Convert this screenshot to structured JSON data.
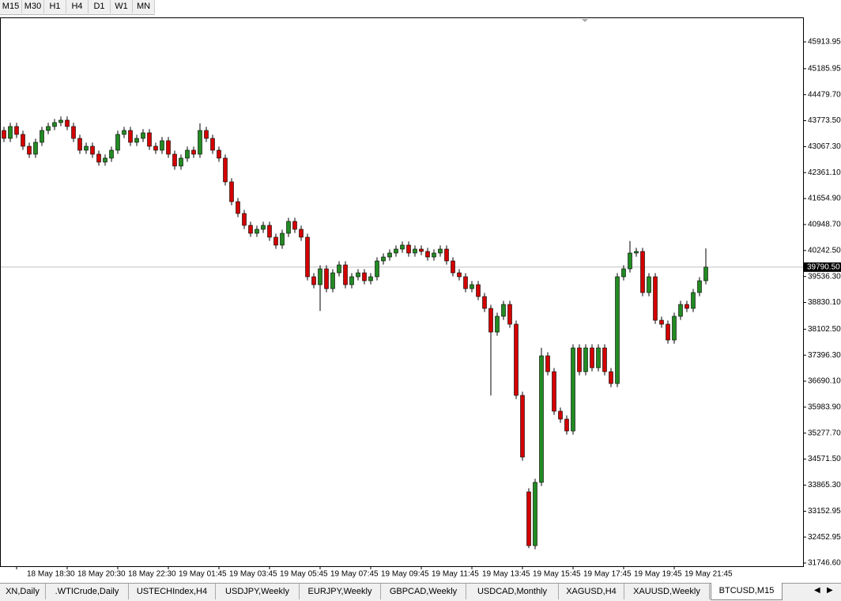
{
  "toolbar": {
    "timeframes": [
      "M15",
      "M30",
      "H1",
      "H4",
      "D1",
      "W1",
      "MN"
    ]
  },
  "chart_data": {
    "type": "candlestick",
    "categories": [
      null,
      null,
      "18 May 18:30",
      null,
      null,
      null,
      null,
      null,
      null,
      null,
      "18 May 20:30",
      null,
      null,
      null,
      null,
      null,
      null,
      null,
      "18 May 22:30",
      null,
      null,
      null,
      null,
      null,
      null,
      null,
      "19 May 01:45",
      null,
      null,
      null,
      null,
      null,
      null,
      null,
      "19 May 03:45",
      null,
      null,
      null,
      null,
      null,
      null,
      null,
      "19 May 05:45",
      null,
      null,
      null,
      null,
      null,
      null,
      null,
      "19 May 07:45",
      null,
      null,
      null,
      null,
      null,
      null,
      null,
      "19 May 09:45",
      null,
      null,
      null,
      null,
      null,
      null,
      null,
      "19 May 11:45",
      null,
      null,
      null,
      null,
      null,
      null,
      null,
      "19 May 13:45",
      null,
      null,
      null,
      null,
      null,
      null,
      null,
      "19 May 15:45",
      null,
      null,
      null,
      null,
      null,
      null,
      null,
      "19 May 17:45",
      null,
      null,
      null,
      null,
      null,
      null,
      null,
      "19 May 19:45",
      null,
      null,
      null,
      null,
      null,
      null,
      null,
      "19 May 21:45",
      null,
      null,
      null,
      null,
      null
    ],
    "open": [
      43506,
      43291,
      43614,
      43399,
      43076,
      42861,
      43184,
      43506,
      43614,
      43721,
      43786,
      43614,
      43291,
      42969,
      43076,
      42861,
      42646,
      42754,
      42969,
      43399,
      43506,
      43184,
      43291,
      43442,
      43076,
      42969,
      43227,
      42861,
      42539,
      42754,
      42969,
      42861,
      43506,
      43291,
      42969,
      42754,
      42109,
      41571,
      41249,
      40926,
      40711,
      40819,
      40926,
      40604,
      40389,
      40711,
      41034,
      40819,
      40604,
      39529,
      39314,
      39744,
      39206,
      39636,
      39851,
      39314,
      39529,
      39636,
      39421,
      39529,
      39959,
      40066,
      40174,
      40281,
      40389,
      40174,
      40281,
      40217,
      40066,
      40174,
      40281,
      39959,
      39636,
      39529,
      39206,
      39314,
      38991,
      38669,
      38024,
      38454,
      38776,
      38239,
      36304,
      33681,
      32219,
      33939,
      37379,
      36949,
      35874,
      35659,
      35336,
      37594,
      36949,
      37594,
      37056,
      37594,
      36949,
      36626,
      39529,
      39744,
      40174,
      40217,
      39099,
      39529,
      38346,
      38239,
      37809,
      38454,
      38776,
      38669,
      39099,
      39421
    ],
    "high": [
      43606,
      43714,
      43714,
      43499,
      43176,
      43284,
      43606,
      43714,
      43821,
      43886,
      43886,
      43714,
      43391,
      43176,
      43176,
      42961,
      42854,
      43069,
      43499,
      43606,
      43606,
      43391,
      43542,
      43542,
      43176,
      43327,
      43327,
      42961,
      42854,
      43069,
      43069,
      43700,
      43606,
      43391,
      43069,
      42854,
      42209,
      41671,
      41349,
      41026,
      40919,
      41026,
      41026,
      40704,
      40811,
      41134,
      41134,
      40919,
      40704,
      39629,
      39844,
      39844,
      39736,
      39951,
      39951,
      39629,
      39736,
      39736,
      39629,
      40059,
      40166,
      40274,
      40381,
      40489,
      40489,
      40381,
      40381,
      40317,
      40274,
      40381,
      40381,
      40059,
      39736,
      39629,
      39414,
      39414,
      39091,
      38769,
      38554,
      38876,
      38876,
      38339,
      36404,
      33781,
      34039,
      37600,
      37479,
      37049,
      35974,
      35759,
      37694,
      37694,
      37694,
      37694,
      37694,
      37694,
      37049,
      39629,
      39844,
      40500,
      40317,
      40317,
      39629,
      39629,
      38446,
      38339,
      38554,
      38876,
      38876,
      39199,
      39521,
      40300
    ],
    "low": [
      43191,
      43191,
      43299,
      42976,
      42761,
      42761,
      43084,
      43406,
      43514,
      43621,
      43514,
      43191,
      42869,
      42869,
      42761,
      42546,
      42546,
      42654,
      42869,
      43299,
      43084,
      43084,
      43191,
      42976,
      42869,
      42869,
      42761,
      42439,
      42439,
      42654,
      42761,
      42761,
      43191,
      42869,
      42654,
      42009,
      41471,
      41149,
      40826,
      40611,
      40611,
      40719,
      40504,
      40289,
      40289,
      40611,
      40719,
      40504,
      39429,
      39214,
      38600,
      39106,
      39106,
      39536,
      39214,
      39214,
      39429,
      39321,
      39321,
      39429,
      39859,
      39966,
      40074,
      40181,
      40074,
      40074,
      40117,
      39966,
      39966,
      40074,
      39859,
      39536,
      39429,
      39106,
      39106,
      38891,
      38569,
      36300,
      37924,
      38354,
      38139,
      36204,
      34527,
      32150,
      32119,
      33839,
      36849,
      35774,
      35559,
      35236,
      35236,
      36849,
      36849,
      36956,
      36956,
      36849,
      36526,
      36526,
      39429,
      39644,
      40074,
      38999,
      38999,
      38246,
      38139,
      37709,
      37709,
      38354,
      38569,
      38569,
      38999,
      39321
    ],
    "close": [
      43291,
      43614,
      43399,
      43076,
      42861,
      43184,
      43506,
      43614,
      43721,
      43786,
      43614,
      43291,
      42969,
      43076,
      42861,
      42646,
      42754,
      42969,
      43399,
      43506,
      43184,
      43291,
      43442,
      43076,
      42969,
      43227,
      42861,
      42539,
      42754,
      42969,
      42861,
      43506,
      43291,
      42969,
      42754,
      42109,
      41571,
      41249,
      40926,
      40711,
      40819,
      40926,
      40604,
      40389,
      40711,
      41034,
      40819,
      40604,
      39529,
      39314,
      39744,
      39206,
      39636,
      39851,
      39314,
      39529,
      39636,
      39421,
      39529,
      39959,
      40066,
      40174,
      40281,
      40389,
      40174,
      40281,
      40217,
      40066,
      40174,
      40281,
      39959,
      39636,
      39529,
      39206,
      39314,
      38991,
      38669,
      38024,
      38454,
      38776,
      38239,
      36304,
      34627,
      32219,
      33939,
      37379,
      36949,
      35874,
      35659,
      35336,
      37594,
      36949,
      37594,
      37056,
      37594,
      36949,
      36626,
      39529,
      39744,
      40174,
      40217,
      39099,
      39529,
      38346,
      38239,
      37809,
      38454,
      38776,
      38669,
      39099,
      39421,
      39790.5
    ],
    "up_color": "#228b22",
    "down_color": "#d40000",
    "current_price": {
      "value": 39790.5,
      "label": "39790.50"
    },
    "ylim": [
      31660,
      46580
    ],
    "yticks": [
      45913.95,
      45185.95,
      {
        "value": 44479.7,
        "label": "44479.70"
      },
      {
        "value": 43773.5,
        "label": "43773.50"
      },
      {
        "value": 43067.3,
        "label": "43067.30"
      },
      {
        "value": 42361.1,
        "label": "42361.10"
      },
      {
        "value": 41654.9,
        "label": "41654.90"
      },
      {
        "value": 40948.7,
        "label": "40948.70"
      },
      {
        "value": 40242.5,
        "label": "40242.50"
      },
      {
        "value": 39536.3,
        "label": "39536.30"
      },
      {
        "value": 38830.1,
        "label": "38830.10"
      },
      {
        "value": 38102.5,
        "label": "38102.50"
      },
      {
        "value": 37396.3,
        "label": "37396.30"
      },
      {
        "value": 36690.1,
        "label": "36690.10"
      },
      {
        "value": 35983.9,
        "label": "35983.90"
      },
      {
        "value": 35277.7,
        "label": "35277.70"
      },
      {
        "value": 34571.5,
        "label": "34571.50"
      },
      {
        "value": 33865.3,
        "label": "33865.30"
      },
      33152.95,
      32452.95,
      {
        "value": 31746.6,
        "label": "31746.60"
      }
    ]
  },
  "tabs": [
    "XN,Daily",
    ".WTICrude,Daily",
    "USTECHIndex,H4",
    "USDJPY,Weekly",
    "EURJPY,Weekly",
    "GBPCAD,Weekly",
    "USDCAD,Monthly",
    "XAGUSD,H4",
    "XAUUSD,Weekly",
    "BTCUSD,M15"
  ],
  "active_tab": 9
}
